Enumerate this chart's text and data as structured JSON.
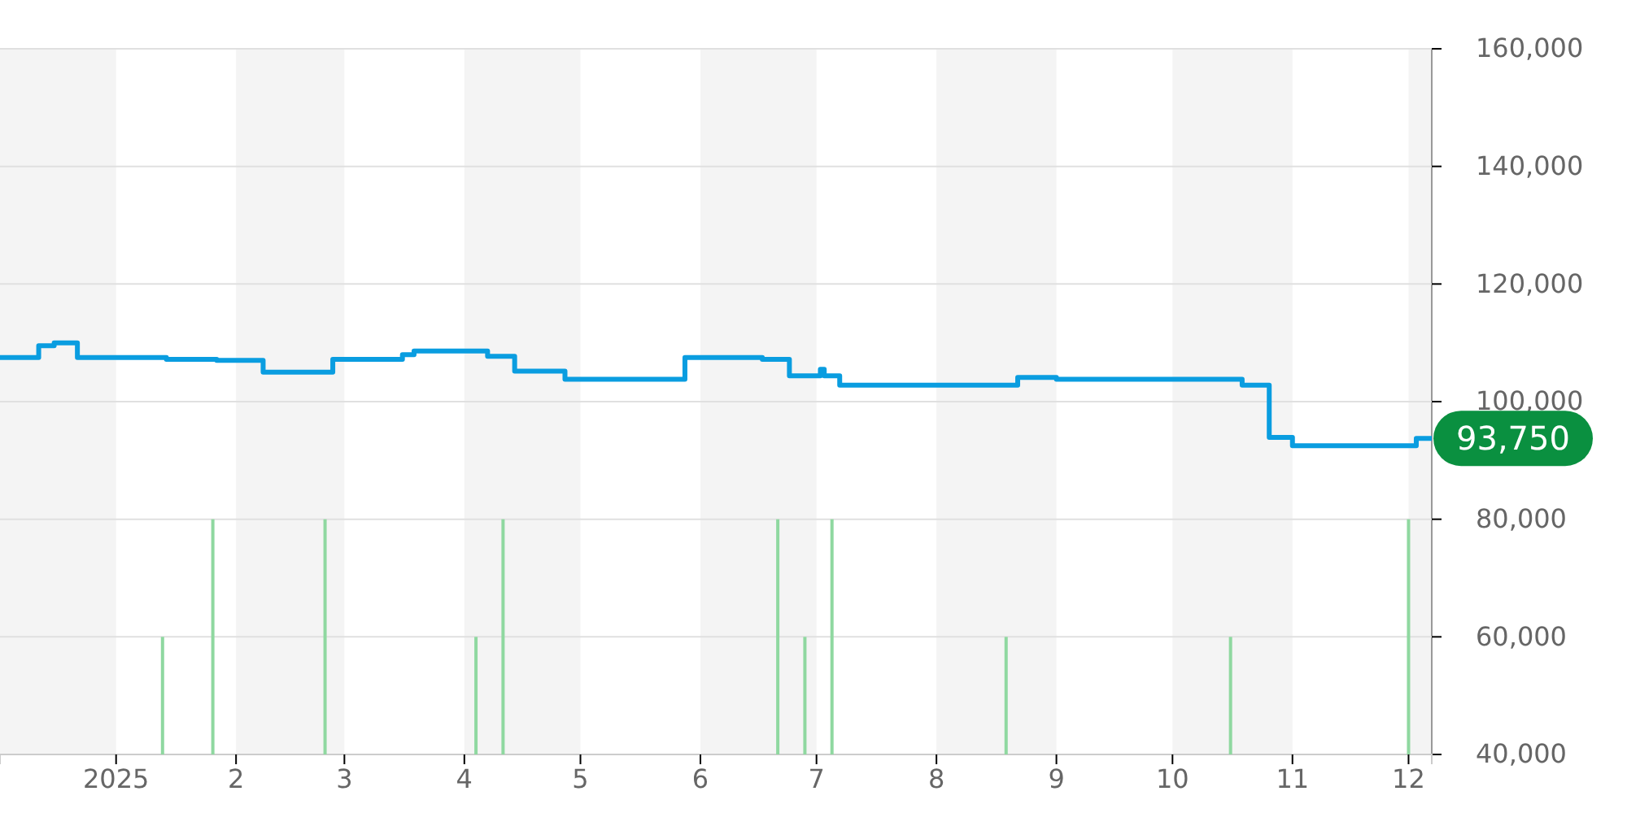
{
  "chart_data": {
    "type": "step",
    "xlim": [
      "2024-12-02",
      "2025-12-07"
    ],
    "xticks": [
      {
        "value": "2025-01-01",
        "label": "2025"
      },
      {
        "value": "2025-02-01",
        "label": "2"
      },
      {
        "value": "2025-03-01",
        "label": "3"
      },
      {
        "value": "2025-04-01",
        "label": "4"
      },
      {
        "value": "2025-05-01",
        "label": "5"
      },
      {
        "value": "2025-06-01",
        "label": "6"
      },
      {
        "value": "2025-07-01",
        "label": "7"
      },
      {
        "value": "2025-08-01",
        "label": "8"
      },
      {
        "value": "2025-09-01",
        "label": "9"
      },
      {
        "value": "2025-10-01",
        "label": "10"
      },
      {
        "value": "2025-11-01",
        "label": "11"
      },
      {
        "value": "2025-12-01",
        "label": "12"
      }
    ],
    "ylim": [
      40000,
      160000
    ],
    "yticks": [
      {
        "value": 40000,
        "label": "40,000"
      },
      {
        "value": 60000,
        "label": "60,000"
      },
      {
        "value": 80000,
        "label": "80,000"
      },
      {
        "value": 100000,
        "label": "100,000"
      },
      {
        "value": 120000,
        "label": "120,000"
      },
      {
        "value": 140000,
        "label": "140,000"
      },
      {
        "value": 160000,
        "label": "160,000"
      }
    ],
    "grid": "y",
    "marker": "none",
    "bands": [
      {
        "axis": "x",
        "from": "2024-12-02",
        "to": "2025-01-01",
        "color": "#f4f4f4"
      },
      {
        "axis": "x",
        "from": "2025-02-01",
        "to": "2025-03-01",
        "color": "#f4f4f4"
      },
      {
        "axis": "x",
        "from": "2025-04-01",
        "to": "2025-05-01",
        "color": "#f4f4f4"
      },
      {
        "axis": "x",
        "from": "2025-06-01",
        "to": "2025-07-01",
        "color": "#f4f4f4"
      },
      {
        "axis": "x",
        "from": "2025-08-01",
        "to": "2025-09-01",
        "color": "#f4f4f4"
      },
      {
        "axis": "x",
        "from": "2025-10-01",
        "to": "2025-11-01",
        "color": "#f4f4f4"
      },
      {
        "axis": "x",
        "from": "2025-12-01",
        "to": "2025-12-07",
        "color": "#f4f4f4"
      }
    ],
    "annotations": [
      {
        "text": "93,750",
        "x": "2025-12-07",
        "y": 93750
      }
    ],
    "series": [
      {
        "type": "bar",
        "color": "#8fd8a0",
        "x": [
          "2025-01-13",
          "2025-01-26",
          "2025-02-24",
          "2025-04-04",
          "2025-04-11",
          "2025-06-21",
          "2025-06-28",
          "2025-07-05",
          "2025-08-19",
          "2025-10-16",
          "2025-12-01"
        ],
        "values": [
          60000,
          80000,
          80000,
          60000,
          80000,
          80000,
          60000,
          80000,
          60000,
          60000,
          80000
        ]
      },
      {
        "color": "#0a9de0",
        "x": [
          "2024-12-02",
          "2024-12-12",
          "2024-12-16",
          "2024-12-22",
          "2025-01-14",
          "2025-01-27",
          "2025-02-08",
          "2025-02-26",
          "2025-03-16",
          "2025-03-19",
          "2025-04-07",
          "2025-04-14",
          "2025-04-27",
          "2025-05-28",
          "2025-06-17",
          "2025-06-24",
          "2025-07-02",
          "2025-07-03",
          "2025-07-07",
          "2025-08-22",
          "2025-09-01",
          "2025-10-19",
          "2025-10-26",
          "2025-11-01",
          "2025-12-03",
          "2025-12-07"
        ],
        "values": [
          107500,
          109500,
          110000,
          107500,
          107200,
          107000,
          105000,
          107200,
          108000,
          108600,
          107700,
          105200,
          103800,
          107500,
          107200,
          104400,
          105500,
          104400,
          102800,
          104100,
          103800,
          102800,
          93900,
          92500,
          93750,
          93750
        ]
      }
    ]
  }
}
